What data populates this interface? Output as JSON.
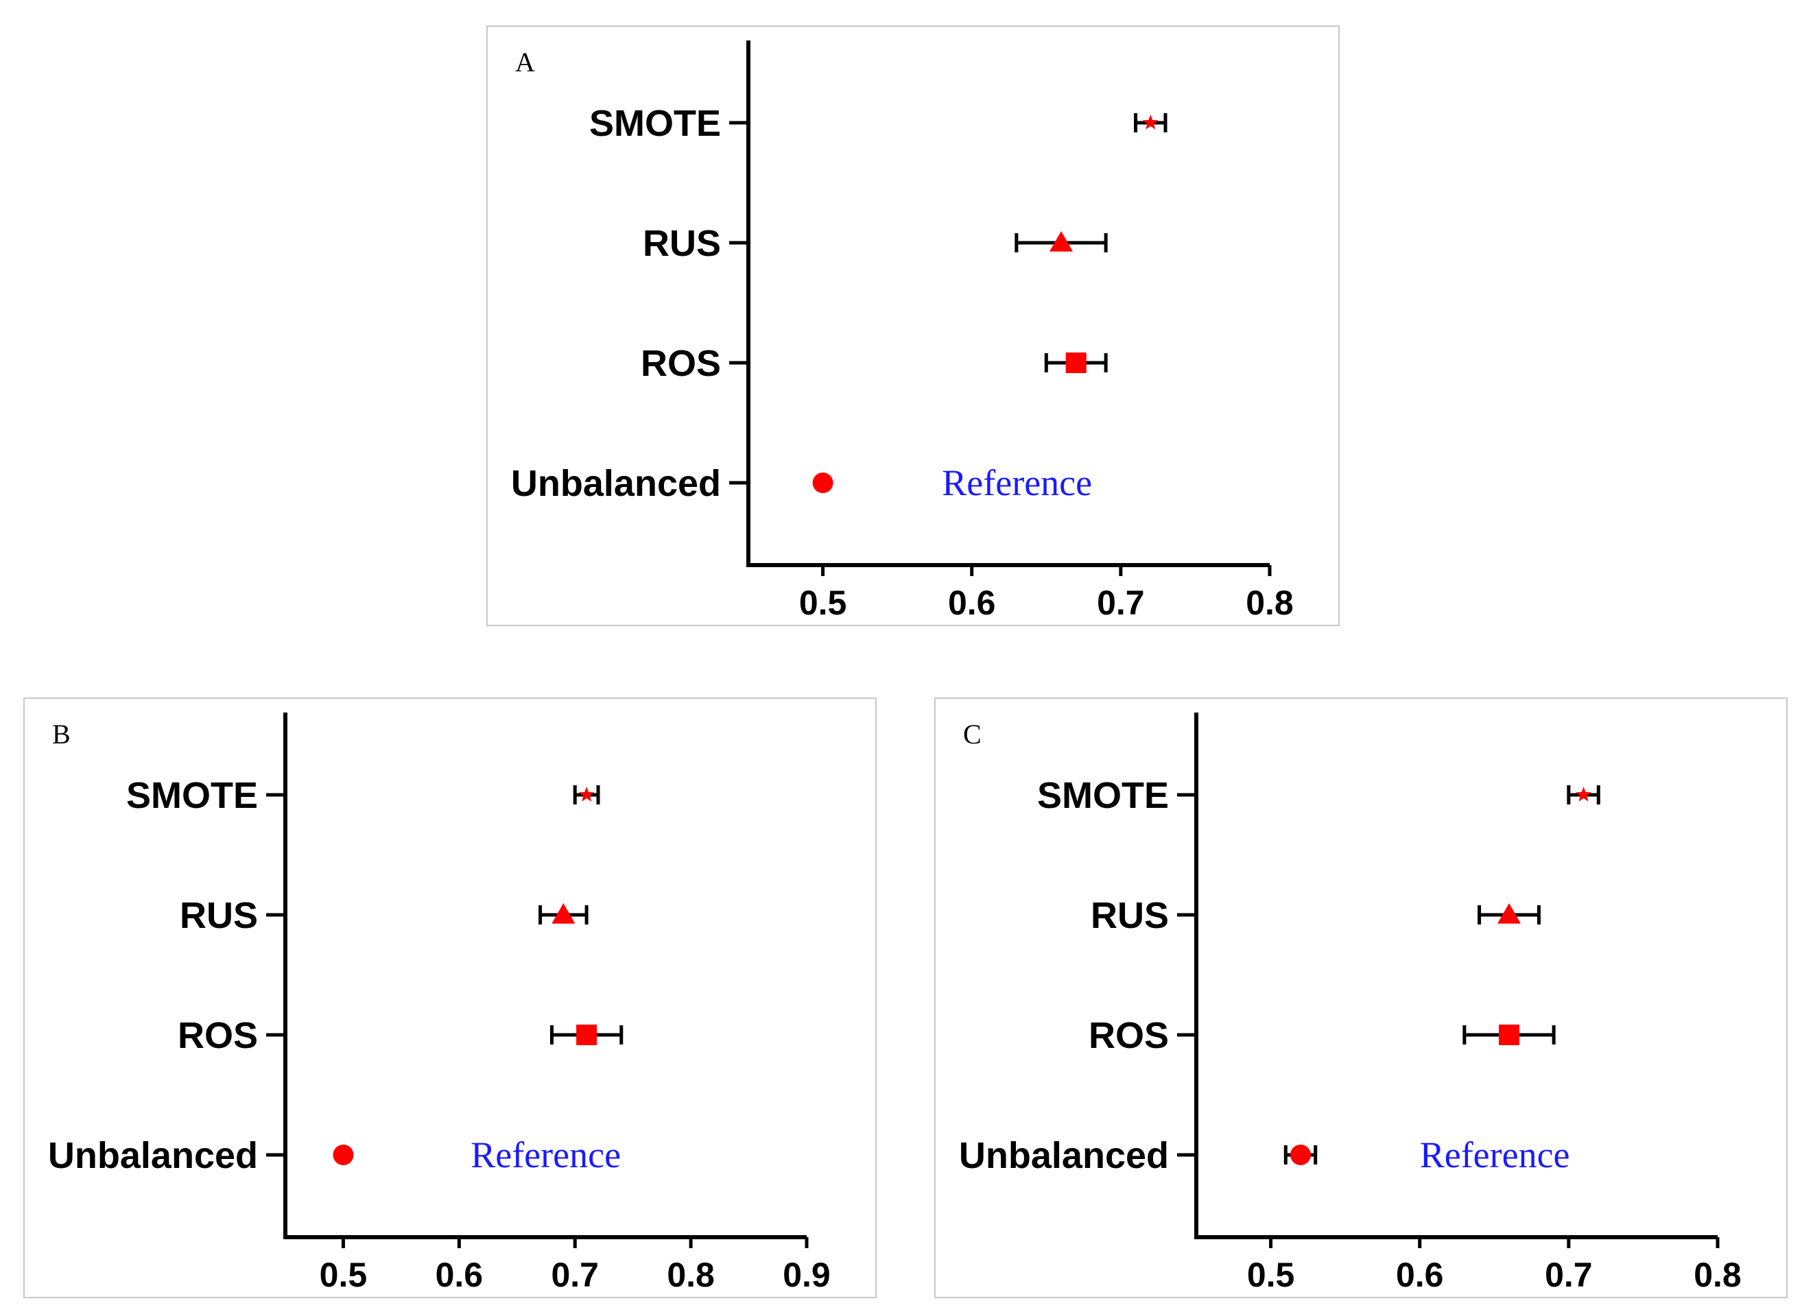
{
  "colors": {
    "marker": "#ff0000",
    "reference_text": "#1a1aff",
    "axis": "#000000"
  },
  "chart_data": [
    {
      "panel": "A",
      "type": "scatter",
      "title": "A",
      "categories": [
        "SMOTE",
        "RUS",
        "ROS",
        "Unbalanced"
      ],
      "xlim": [
        0.45,
        0.8
      ],
      "xticks": [
        "0.5",
        "0.6",
        "0.7",
        "0.8"
      ],
      "points": [
        {
          "category": "SMOTE",
          "value": 0.72,
          "lower": 0.71,
          "upper": 0.73,
          "marker": "star"
        },
        {
          "category": "RUS",
          "value": 0.66,
          "lower": 0.63,
          "upper": 0.69,
          "marker": "triangle"
        },
        {
          "category": "ROS",
          "value": 0.67,
          "lower": 0.65,
          "upper": 0.69,
          "marker": "square"
        },
        {
          "category": "Unbalanced",
          "value": 0.5,
          "marker": "circle"
        }
      ],
      "annotation": "Reference",
      "annotation_x": 0.58
    },
    {
      "panel": "B",
      "type": "scatter",
      "title": "B",
      "categories": [
        "SMOTE",
        "RUS",
        "ROS",
        "Unbalanced"
      ],
      "xlim": [
        0.45,
        0.9
      ],
      "xticks": [
        "0.5",
        "0.6",
        "0.7",
        "0.8",
        "0.9"
      ],
      "points": [
        {
          "category": "SMOTE",
          "value": 0.71,
          "lower": 0.7,
          "upper": 0.72,
          "marker": "star"
        },
        {
          "category": "RUS",
          "value": 0.69,
          "lower": 0.67,
          "upper": 0.71,
          "marker": "triangle"
        },
        {
          "category": "ROS",
          "value": 0.71,
          "lower": 0.68,
          "upper": 0.74,
          "marker": "square"
        },
        {
          "category": "Unbalanced",
          "value": 0.5,
          "marker": "circle"
        }
      ],
      "annotation": "Reference",
      "annotation_x": 0.61
    },
    {
      "panel": "C",
      "type": "scatter",
      "title": "C",
      "categories": [
        "SMOTE",
        "RUS",
        "ROS",
        "Unbalanced"
      ],
      "xlim": [
        0.45,
        0.8
      ],
      "xticks": [
        "0.5",
        "0.6",
        "0.7",
        "0.8"
      ],
      "points": [
        {
          "category": "SMOTE",
          "value": 0.71,
          "lower": 0.7,
          "upper": 0.72,
          "marker": "star"
        },
        {
          "category": "RUS",
          "value": 0.66,
          "lower": 0.64,
          "upper": 0.68,
          "marker": "triangle"
        },
        {
          "category": "ROS",
          "value": 0.66,
          "lower": 0.63,
          "upper": 0.69,
          "marker": "square"
        },
        {
          "category": "Unbalanced",
          "value": 0.52,
          "lower": 0.51,
          "upper": 0.53,
          "marker": "circle"
        }
      ],
      "annotation": "Reference",
      "annotation_x": 0.6
    }
  ]
}
